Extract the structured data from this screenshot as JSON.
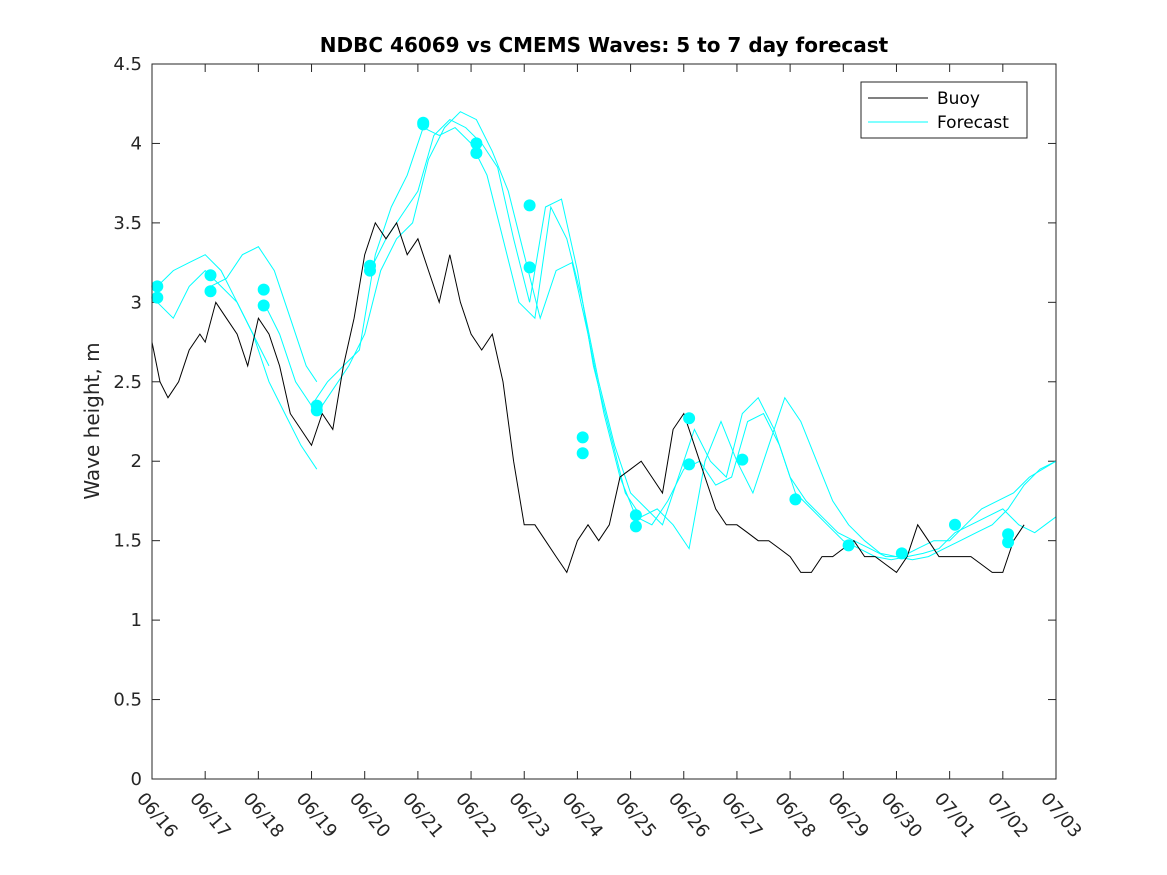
{
  "chart_data": {
    "type": "line",
    "title": "NDBC 46069 vs CMEMS Waves: 5 to 7 day forecast",
    "xlabel": "",
    "ylabel": "Wave height, m",
    "xlim": [
      "06/16",
      "07/03"
    ],
    "ylim": [
      0,
      4.5
    ],
    "x_tick_labels": [
      "06/16",
      "06/17",
      "06/18",
      "06/19",
      "06/20",
      "06/21",
      "06/22",
      "06/23",
      "06/24",
      "06/25",
      "06/26",
      "06/27",
      "06/28",
      "06/29",
      "06/30",
      "07/01",
      "07/02",
      "07/03"
    ],
    "y_ticks": [
      0,
      0.5,
      1,
      1.5,
      2,
      2.5,
      3,
      3.5,
      4,
      4.5
    ],
    "y_tick_labels": [
      "0",
      "0.5",
      "1",
      "1.5",
      "2",
      "2.5",
      "3",
      "3.5",
      "4",
      "4.5"
    ],
    "grid": false,
    "legend_position": "top-right",
    "colors": {
      "buoy": "#000000",
      "forecast": "#00ffff"
    },
    "series": [
      {
        "name": "Buoy",
        "color": "#000000",
        "x": [
          0,
          0.15,
          0.3,
          0.5,
          0.7,
          0.9,
          1.0,
          1.2,
          1.4,
          1.6,
          1.8,
          2.0,
          2.2,
          2.4,
          2.6,
          2.8,
          3.0,
          3.2,
          3.4,
          3.6,
          3.8,
          4.0,
          4.2,
          4.4,
          4.6,
          4.8,
          5.0,
          5.2,
          5.4,
          5.6,
          5.8,
          6.0,
          6.2,
          6.4,
          6.6,
          6.8,
          7.0,
          7.2,
          7.4,
          7.6,
          7.8,
          8.0,
          8.2,
          8.4,
          8.6,
          8.8,
          9.0,
          9.2,
          9.4,
          9.6,
          9.8,
          10.0,
          10.2,
          10.4,
          10.6,
          10.8,
          11.0,
          11.2,
          11.4,
          11.6,
          11.8,
          12.0,
          12.2,
          12.4,
          12.6,
          12.8,
          13.0,
          13.2,
          13.4,
          13.6,
          13.8,
          14.0,
          14.2,
          14.4,
          14.6,
          14.8,
          15.0,
          15.2,
          15.4,
          15.6,
          15.8,
          16.0,
          16.2,
          16.4
        ],
        "y": [
          2.75,
          2.5,
          2.4,
          2.5,
          2.7,
          2.8,
          2.75,
          3.0,
          2.9,
          2.8,
          2.6,
          2.9,
          2.8,
          2.6,
          2.3,
          2.2,
          2.1,
          2.3,
          2.2,
          2.6,
          2.9,
          3.3,
          3.5,
          3.4,
          3.5,
          3.3,
          3.4,
          3.2,
          3.0,
          3.3,
          3.0,
          2.8,
          2.7,
          2.8,
          2.5,
          2.0,
          1.6,
          1.6,
          1.5,
          1.4,
          1.3,
          1.5,
          1.6,
          1.5,
          1.6,
          1.9,
          1.95,
          2.0,
          1.9,
          1.8,
          2.2,
          2.3,
          2.1,
          1.9,
          1.7,
          1.6,
          1.6,
          1.55,
          1.5,
          1.5,
          1.45,
          1.4,
          1.3,
          1.3,
          1.4,
          1.4,
          1.45,
          1.5,
          1.4,
          1.4,
          1.35,
          1.3,
          1.4,
          1.6,
          1.5,
          1.4,
          1.4,
          1.4,
          1.4,
          1.35,
          1.3,
          1.3,
          1.5,
          1.6
        ]
      },
      {
        "name": "Forecast",
        "color": "#00ffff",
        "runs": [
          {
            "x": [
              0.1,
              0.4,
              0.7,
              1.0,
              1.3,
              1.6,
              1.9,
              2.2,
              2.5,
              2.8,
              3.1
            ],
            "y": [
              3.0,
              2.9,
              3.1,
              3.2,
              3.1,
              3.0,
              2.8,
              2.5,
              2.3,
              2.1,
              1.95
            ]
          },
          {
            "x": [
              0.1,
              0.4,
              0.7,
              1.0,
              1.3,
              1.6,
              1.9,
              2.2
            ],
            "y": [
              3.1,
              3.2,
              3.25,
              3.3,
              3.2,
              3.0,
              2.8,
              2.6
            ]
          },
          {
            "x": [
              1.1,
              1.4,
              1.7,
              2.0,
              2.3,
              2.6,
              2.9,
              3.1
            ],
            "y": [
              3.1,
              3.15,
              3.3,
              3.35,
              3.2,
              2.9,
              2.6,
              2.5
            ]
          },
          {
            "x": [
              2.1,
              2.4,
              2.7,
              3.0,
              3.3,
              3.6,
              3.9,
              4.2,
              4.5,
              4.8,
              5.1,
              5.4,
              5.7,
              6.0,
              6.3,
              6.6,
              6.9,
              7.2,
              7.5,
              7.8,
              8.1,
              8.4,
              8.7,
              9.0,
              9.3,
              9.6,
              9.9,
              10.2,
              10.5,
              10.8,
              11.1,
              11.4,
              11.7,
              12.0,
              12.3,
              12.6,
              12.9,
              13.2,
              13.5,
              13.8,
              14.1,
              14.4,
              14.7,
              15.0,
              15.3,
              15.6,
              15.9,
              16.2,
              16.5,
              17.0
            ],
            "y": [
              3.0,
              2.8,
              2.5,
              2.35,
              2.5,
              2.6,
              2.7,
              3.3,
              3.6,
              3.8,
              4.1,
              4.05,
              4.1,
              4.0,
              3.8,
              3.4,
              3.0,
              2.9,
              3.6,
              3.4,
              3.0,
              2.5,
              2.1,
              1.8,
              1.7,
              1.6,
              1.9,
              2.2,
              2.0,
              1.9,
              2.3,
              2.4,
              2.2,
              1.9,
              1.75,
              1.65,
              1.55,
              1.5,
              1.45,
              1.4,
              1.4,
              1.45,
              1.5,
              1.5,
              1.6,
              1.7,
              1.75,
              1.8,
              1.9,
              2.0
            ]
          },
          {
            "x": [
              3.1,
              3.4,
              3.7,
              4.0,
              4.3,
              4.6,
              4.9,
              5.2,
              5.5,
              5.8,
              6.1,
              6.4,
              6.7,
              7.0,
              7.3,
              7.6,
              7.9,
              8.2,
              8.5,
              8.8,
              9.1,
              9.4,
              9.7,
              10.0,
              10.3,
              10.6,
              10.9,
              11.2,
              11.5,
              11.8,
              12.1,
              12.4,
              12.7,
              13.0,
              13.3,
              13.6,
              13.9,
              14.2,
              14.5,
              14.8,
              15.1,
              15.4,
              15.7,
              16.0,
              16.3,
              16.6,
              17.0
            ],
            "y": [
              2.3,
              2.45,
              2.6,
              2.8,
              3.2,
              3.4,
              3.5,
              3.9,
              4.1,
              4.2,
              4.15,
              3.95,
              3.7,
              3.3,
              2.9,
              3.2,
              3.25,
              2.8,
              2.3,
              1.9,
              1.65,
              1.6,
              1.75,
              1.95,
              2.0,
              1.85,
              1.9,
              2.25,
              2.3,
              2.1,
              1.8,
              1.7,
              1.6,
              1.5,
              1.45,
              1.4,
              1.38,
              1.4,
              1.42,
              1.45,
              1.55,
              1.6,
              1.65,
              1.7,
              1.6,
              1.55,
              1.65
            ]
          },
          {
            "x": [
              4.1,
              4.4,
              4.7,
              5.0,
              5.3,
              5.6,
              5.9,
              6.2,
              6.5,
              6.8,
              7.1,
              7.4,
              7.7,
              8.0,
              8.3,
              8.6,
              8.9,
              9.2,
              9.5,
              9.8,
              10.1,
              10.4,
              10.7,
              11.0,
              11.3,
              11.6,
              11.9,
              12.2,
              12.5,
              12.8,
              13.1,
              13.4,
              13.7,
              14.0,
              14.3,
              14.6,
              14.9,
              15.2,
              15.5,
              15.8,
              16.1,
              16.4,
              16.7,
              17.0
            ],
            "y": [
              3.2,
              3.4,
              3.55,
              3.7,
              4.05,
              4.15,
              4.1,
              4.0,
              3.85,
              3.4,
              3.0,
              3.6,
              3.65,
              3.2,
              2.6,
              2.2,
              1.8,
              1.65,
              1.7,
              1.6,
              1.45,
              2.0,
              2.25,
              2.0,
              1.8,
              2.1,
              2.4,
              2.25,
              2.0,
              1.75,
              1.6,
              1.5,
              1.42,
              1.4,
              1.38,
              1.4,
              1.45,
              1.5,
              1.55,
              1.6,
              1.7,
              1.85,
              1.95,
              2.0
            ]
          }
        ],
        "markers": [
          {
            "x": 0.1,
            "y": 3.1
          },
          {
            "x": 0.1,
            "y": 3.03
          },
          {
            "x": 1.1,
            "y": 3.17
          },
          {
            "x": 1.1,
            "y": 3.07
          },
          {
            "x": 2.1,
            "y": 3.08
          },
          {
            "x": 2.1,
            "y": 2.98
          },
          {
            "x": 3.1,
            "y": 2.35
          },
          {
            "x": 3.1,
            "y": 2.32
          },
          {
            "x": 4.1,
            "y": 3.23
          },
          {
            "x": 4.1,
            "y": 3.2
          },
          {
            "x": 5.1,
            "y": 4.13
          },
          {
            "x": 5.1,
            "y": 4.12
          },
          {
            "x": 6.1,
            "y": 4.0
          },
          {
            "x": 6.1,
            "y": 3.94
          },
          {
            "x": 7.1,
            "y": 3.61
          },
          {
            "x": 7.1,
            "y": 3.22
          },
          {
            "x": 8.1,
            "y": 2.15
          },
          {
            "x": 8.1,
            "y": 2.05
          },
          {
            "x": 9.1,
            "y": 1.66
          },
          {
            "x": 9.1,
            "y": 1.59
          },
          {
            "x": 10.1,
            "y": 2.27
          },
          {
            "x": 10.1,
            "y": 1.98
          },
          {
            "x": 11.1,
            "y": 2.01
          },
          {
            "x": 12.1,
            "y": 1.76
          },
          {
            "x": 13.1,
            "y": 1.47
          },
          {
            "x": 14.1,
            "y": 1.42
          },
          {
            "x": 15.1,
            "y": 1.6
          },
          {
            "x": 16.1,
            "y": 1.54
          },
          {
            "x": 16.1,
            "y": 1.49
          }
        ]
      }
    ]
  }
}
